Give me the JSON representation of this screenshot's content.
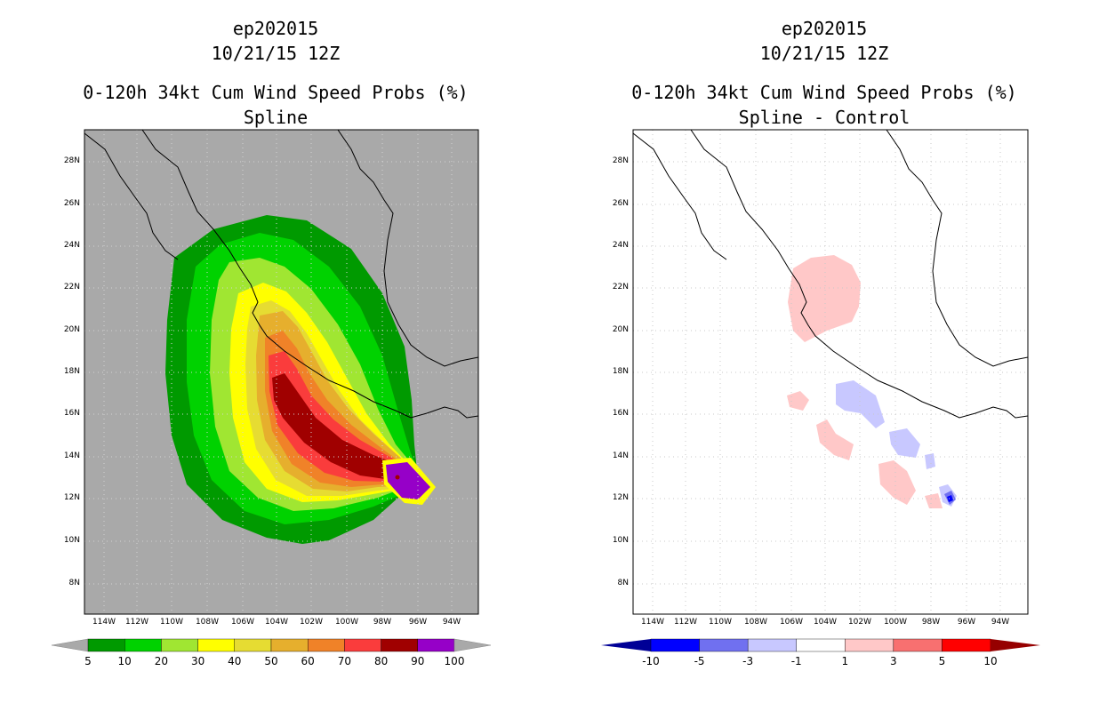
{
  "left": {
    "storm": "ep202015",
    "date": "10/21/15 12Z",
    "product": "0-120h 34kt Cum Wind Speed Probs (%)",
    "subtitle": "Spline",
    "colorbar_labels": [
      "5",
      "10",
      "20",
      "30",
      "40",
      "50",
      "60",
      "70",
      "80",
      "90",
      "100"
    ],
    "colors": [
      "#009a00",
      "#00d200",
      "#a0e632",
      "#ffff00",
      "#e6dc32",
      "#e6af2d",
      "#f08228",
      "#fa3c3c",
      "#a00000",
      "#9600c8"
    ]
  },
  "right": {
    "storm": "ep202015",
    "date": "10/21/15 12Z",
    "product": "0-120h 34kt Cum Wind Speed Probs (%)",
    "subtitle": "Spline - Control",
    "colorbar_labels": [
      "-10",
      "-5",
      "-3",
      "-1",
      "1",
      "3",
      "5",
      "10"
    ],
    "colors": [
      "#000096",
      "#0000ff",
      "#7070f0",
      "#c8c8ff",
      "#ffffff",
      "#ffc8c8",
      "#f87070",
      "#ff0000",
      "#960000"
    ]
  },
  "axes": {
    "lat_labels": [
      "28N",
      "26N",
      "24N",
      "22N",
      "20N",
      "18N",
      "16N",
      "14N",
      "12N",
      "10N",
      "8N"
    ],
    "lon_labels": [
      "114W",
      "112W",
      "110W",
      "108W",
      "106W",
      "104W",
      "102W",
      "100W",
      "98W",
      "96W",
      "94W"
    ]
  }
}
